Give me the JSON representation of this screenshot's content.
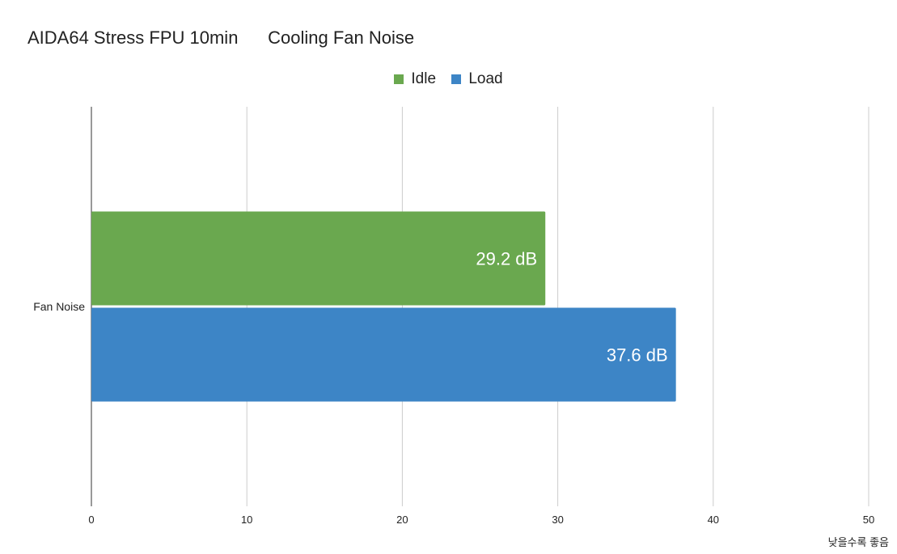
{
  "chart_data": {
    "type": "bar",
    "orientation": "horizontal",
    "title": "AIDA64 Stress FPU 10min      Cooling Fan Noise",
    "categories": [
      "Fan Noise"
    ],
    "series": [
      {
        "name": "Idle",
        "values": [
          29.2
        ],
        "color": "#6aa84f",
        "labels": [
          "29.2 dB"
        ]
      },
      {
        "name": "Load",
        "values": [
          37.6
        ],
        "color": "#3d85c6",
        "labels": [
          "37.6 dB"
        ]
      }
    ],
    "xlim": [
      0,
      50
    ],
    "xticks": [
      0,
      10,
      20,
      30,
      40,
      50
    ],
    "xlabel": "",
    "ylabel": "",
    "grid": true,
    "legend_position": "top",
    "note": "낮을수록 좋음"
  }
}
